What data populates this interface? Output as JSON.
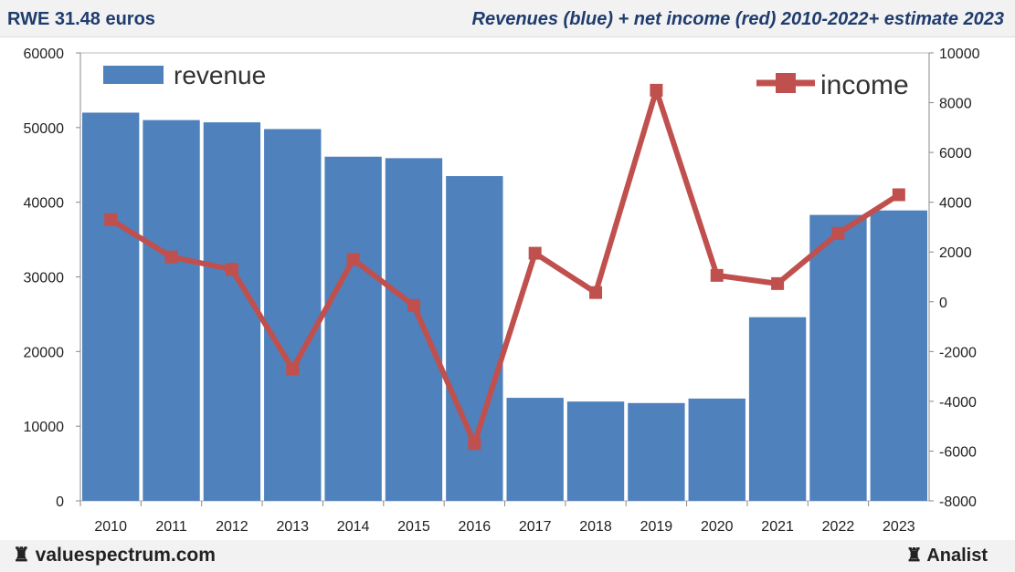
{
  "header": {
    "title": "RWE 31.48 euros",
    "subtitle": "Revenues (blue) + net income (red) 2010-2022+ estimate 2023"
  },
  "footer": {
    "left": "valuespectrum.com",
    "right": "Analist"
  },
  "chart_data": {
    "type": "bar+line",
    "title": "Revenues (blue) + net income (red) 2010-2022+ estimate 2023",
    "categories": [
      "2010",
      "2011",
      "2012",
      "2013",
      "2014",
      "2015",
      "2016",
      "2017",
      "2018",
      "2019",
      "2020",
      "2021",
      "2022",
      "2023"
    ],
    "series": [
      {
        "name": "revenue",
        "type": "bar",
        "axis": "left",
        "color": "#4f81bd",
        "values": [
          52000,
          51000,
          50700,
          49800,
          46100,
          45900,
          43500,
          13800,
          13300,
          13100,
          13700,
          24600,
          38300,
          38900
        ]
      },
      {
        "name": "income",
        "type": "line",
        "axis": "right",
        "color": "#c0504d",
        "values": [
          3300,
          1800,
          1300,
          -2700,
          1700,
          -150,
          -5700,
          1950,
          370,
          8500,
          1060,
          730,
          2750,
          4300
        ]
      }
    ],
    "ylim_left": [
      0,
      60000
    ],
    "yticks_left": [
      "0",
      "10000",
      "20000",
      "30000",
      "40000",
      "50000",
      "60000"
    ],
    "ylim_right": [
      -8000,
      10000
    ],
    "yticks_right": [
      "-8000",
      "-6000",
      "-4000",
      "-2000",
      "0",
      "2000",
      "4000",
      "6000",
      "8000",
      "10000"
    ],
    "legend": [
      "revenue",
      "income"
    ]
  }
}
